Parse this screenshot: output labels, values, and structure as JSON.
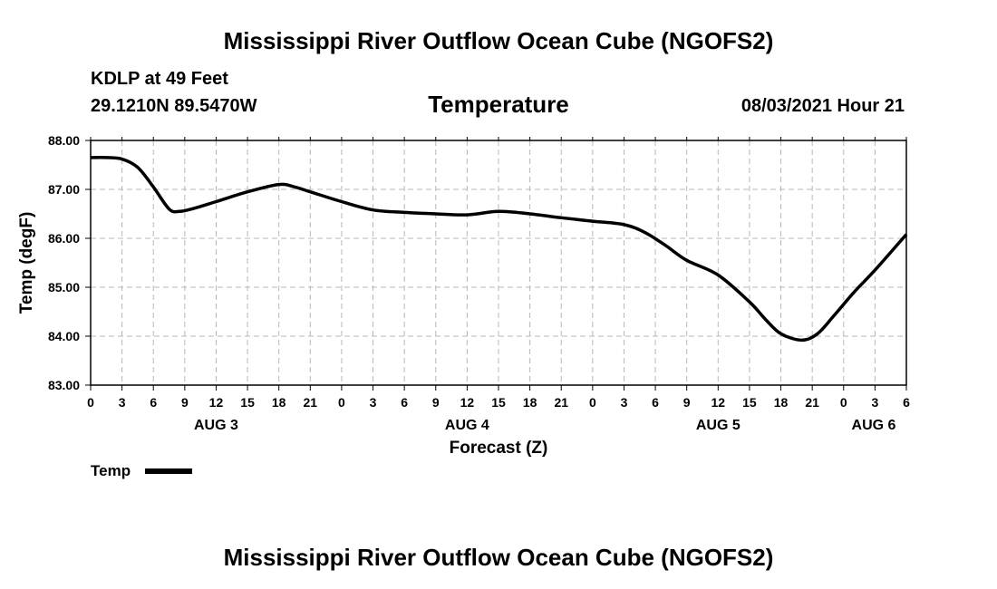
{
  "header": {
    "title": "Mississippi River Outflow Ocean Cube (NGOFS2)",
    "station": "KDLP at 49 Feet",
    "coords": "29.1210N  89.5470W",
    "date": "08/03/2021 Hour 21"
  },
  "footer": {
    "title": "Mississippi River Outflow Ocean Cube (NGOFS2)"
  },
  "legend": {
    "label": "Temp"
  },
  "chart_data": {
    "type": "line",
    "title": "Temperature",
    "xlabel": "Forecast (Z)",
    "ylabel": "Temp (degF)",
    "ylim": [
      83.0,
      88.0
    ],
    "yticks": [
      "83.00",
      "84.00",
      "85.00",
      "86.00",
      "87.00",
      "88.00"
    ],
    "xlim": [
      0,
      78
    ],
    "xticks": [
      "0",
      "3",
      "6",
      "9",
      "12",
      "15",
      "18",
      "21",
      "0",
      "3",
      "6",
      "9",
      "12",
      "15",
      "18",
      "21",
      "0",
      "3",
      "6",
      "9",
      "12",
      "15",
      "18",
      "21",
      "0",
      "3",
      "6"
    ],
    "day_labels": [
      {
        "label": "AUG 3",
        "hour": 12
      },
      {
        "label": "AUG 4",
        "hour": 36
      },
      {
        "label": "AUG 5",
        "hour": 60
      },
      {
        "label": "AUG 6",
        "hour": 78
      }
    ],
    "grid": true,
    "series": [
      {
        "name": "Temp",
        "x": [
          0,
          1.5,
          3,
          4.5,
          6,
          7.5,
          8.5,
          10,
          12,
          15,
          18,
          19.5,
          21,
          24,
          27,
          30,
          33,
          36,
          39,
          42,
          45,
          48,
          51,
          53,
          55,
          57,
          60,
          63,
          64.5,
          66,
          68,
          69.5,
          71,
          73,
          75,
          78
        ],
        "y": [
          87.65,
          87.65,
          87.62,
          87.45,
          87.05,
          86.6,
          86.55,
          86.62,
          86.75,
          86.95,
          87.1,
          87.05,
          86.95,
          86.75,
          86.58,
          86.53,
          86.5,
          86.48,
          86.55,
          86.5,
          86.42,
          86.35,
          86.28,
          86.12,
          85.85,
          85.55,
          85.25,
          84.7,
          84.35,
          84.05,
          83.92,
          84.05,
          84.4,
          84.9,
          85.35,
          86.08
        ]
      }
    ]
  }
}
